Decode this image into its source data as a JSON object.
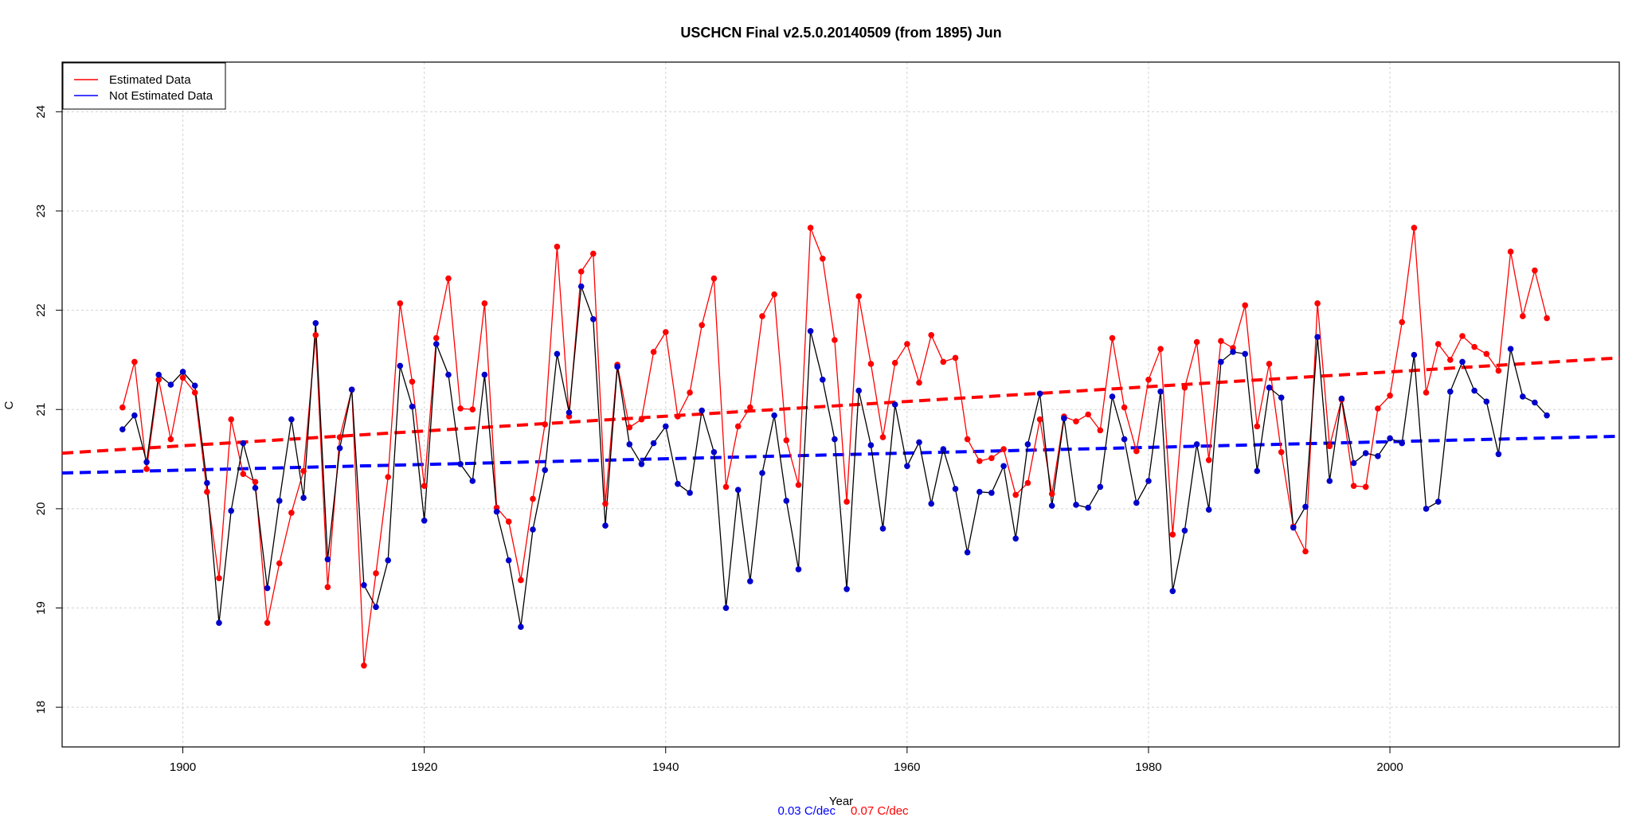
{
  "chart_data": {
    "type": "line",
    "title": "USCHCN Final v2.5.0.20140509 (from 1895) Jun",
    "xlabel": "Year",
    "ylabel": "C",
    "xlim": [
      1890,
      2019
    ],
    "ylim": [
      17.6,
      24.5
    ],
    "x_ticks": [
      1900,
      1920,
      1940,
      1960,
      1980,
      2000
    ],
    "y_ticks": [
      18,
      19,
      20,
      21,
      22,
      23,
      24
    ],
    "grid": true,
    "legend": {
      "position": "top-left",
      "entries": [
        {
          "label": "Estimated Data",
          "color": "#ff0000"
        },
        {
          "label": "Not Estimated Data",
          "color": "#0000ff"
        }
      ]
    },
    "series": [
      {
        "name": "Estimated Data",
        "color": "#ff0000",
        "line_color": "#ff0000",
        "start_year": 1895,
        "values": [
          21.02,
          21.48,
          20.4,
          21.3,
          20.7,
          21.32,
          21.17,
          20.17,
          19.3,
          20.9,
          20.35,
          20.27,
          18.85,
          19.45,
          19.96,
          20.38,
          21.75,
          19.21,
          20.72,
          21.2,
          18.42,
          19.35,
          20.32,
          22.07,
          21.28,
          20.23,
          21.72,
          22.32,
          21.01,
          21.0,
          22.07,
          20.01,
          19.87,
          19.28,
          20.1,
          20.85,
          22.64,
          20.93,
          22.39,
          22.57,
          20.05,
          21.45,
          20.82,
          20.9,
          21.58,
          21.78,
          20.93,
          21.17,
          21.85,
          22.32,
          20.22,
          20.83,
          21.02,
          21.94,
          22.16,
          20.69,
          20.24,
          22.83,
          22.52,
          21.7,
          20.07,
          22.14,
          21.46,
          20.72,
          21.47,
          21.66,
          21.27,
          21.75,
          21.48,
          21.52,
          20.7,
          20.48,
          20.51,
          20.6,
          20.14,
          20.26,
          20.9,
          20.15,
          20.93,
          20.88,
          20.95,
          20.79,
          21.72,
          21.02,
          20.58,
          21.3,
          21.61,
          19.74,
          21.22,
          21.68,
          20.49,
          21.69,
          21.62,
          22.05,
          20.83,
          21.46,
          20.57,
          19.82,
          19.57,
          22.07,
          20.63,
          21.1,
          20.23,
          20.22,
          21.01,
          21.14,
          21.88,
          22.83,
          21.17,
          21.66,
          21.5,
          21.74,
          21.63,
          21.56,
          21.39,
          22.59,
          21.94,
          22.4,
          21.92
        ]
      },
      {
        "name": "Not Estimated Data",
        "color": "#0000cc",
        "line_color": "#000000",
        "start_year": 1895,
        "values": [
          20.8,
          20.94,
          20.47,
          21.35,
          21.25,
          21.38,
          21.24,
          20.26,
          18.85,
          19.98,
          20.66,
          20.21,
          19.2,
          20.08,
          20.9,
          20.11,
          21.87,
          19.49,
          20.61,
          21.2,
          19.23,
          19.01,
          19.48,
          21.44,
          21.03,
          19.88,
          21.66,
          21.35,
          20.45,
          20.28,
          21.35,
          19.97,
          19.48,
          18.81,
          19.79,
          20.39,
          21.56,
          20.97,
          22.24,
          21.91,
          19.83,
          21.43,
          20.65,
          20.45,
          20.66,
          20.83,
          20.25,
          20.16,
          20.99,
          20.57,
          19.0,
          20.19,
          19.27,
          20.36,
          20.94,
          20.08,
          19.39,
          21.79,
          21.3,
          20.7,
          19.19,
          21.19,
          20.64,
          19.8,
          21.05,
          20.43,
          20.67,
          20.05,
          20.6,
          20.2,
          19.56,
          20.17,
          20.16,
          20.43,
          19.7,
          20.65,
          21.16,
          20.03,
          20.91,
          20.04,
          20.01,
          20.22,
          21.13,
          20.7,
          20.06,
          20.28,
          21.18,
          19.17,
          19.78,
          20.65,
          19.99,
          21.48,
          21.58,
          21.56,
          20.38,
          21.22,
          21.12,
          19.81,
          20.02,
          21.73,
          20.28,
          21.11,
          20.46,
          20.56,
          20.53,
          20.71,
          20.66,
          21.55,
          20.0,
          20.07,
          21.18,
          21.48,
          21.19,
          21.08,
          20.55,
          21.61,
          21.13,
          21.07,
          20.94
        ]
      }
    ],
    "trends": [
      {
        "name": "Not Estimated Data trend",
        "color": "#0000ff",
        "from": [
          1890,
          20.36
        ],
        "to": [
          2019,
          20.73
        ],
        "label": "0.03 C/dec"
      },
      {
        "name": "Estimated Data trend",
        "color": "#ff0000",
        "from": [
          1890,
          20.56
        ],
        "to": [
          2019,
          21.52
        ],
        "label": "0.07 C/dec"
      }
    ]
  }
}
